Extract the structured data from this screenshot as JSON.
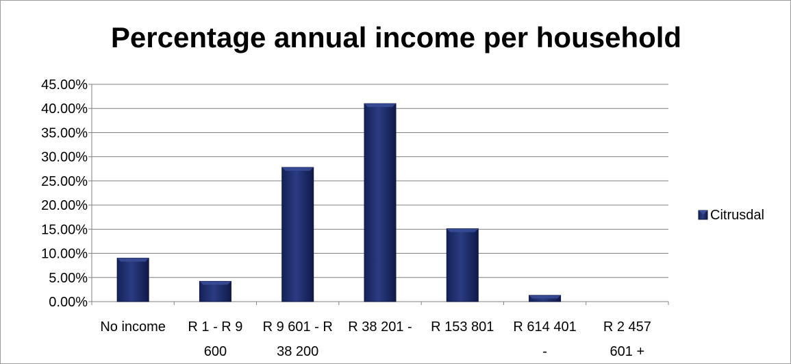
{
  "chart_data": {
    "type": "bar",
    "title": "Percentage annual income per household",
    "xlabel": "",
    "ylabel": "",
    "categories": [
      [
        "No income"
      ],
      [
        "R 1 - R 9",
        "600"
      ],
      [
        "R 9 601 - R",
        "38 200"
      ],
      [
        "R 38 201 -",
        ""
      ],
      [
        "R 153 801",
        ""
      ],
      [
        "R 614 401",
        "-"
      ],
      [
        "R 2 457",
        "601 +"
      ]
    ],
    "series": [
      {
        "name": "Citrusdal",
        "values": [
          9.0,
          4.2,
          27.8,
          41.0,
          15.1,
          1.3,
          0.0
        ]
      }
    ],
    "ylim": [
      0,
      45
    ],
    "ytick_step": 5,
    "ytick_labels": [
      "0.00%",
      "5.00%",
      "10.00%",
      "15.00%",
      "20.00%",
      "25.00%",
      "30.00%",
      "35.00%",
      "40.00%",
      "45.00%"
    ],
    "grid": true,
    "legend": "right",
    "colors": {
      "bar": "#1f2f6b",
      "bar_highlight": "#3a4e98",
      "grid": "#7f7f7f"
    }
  }
}
